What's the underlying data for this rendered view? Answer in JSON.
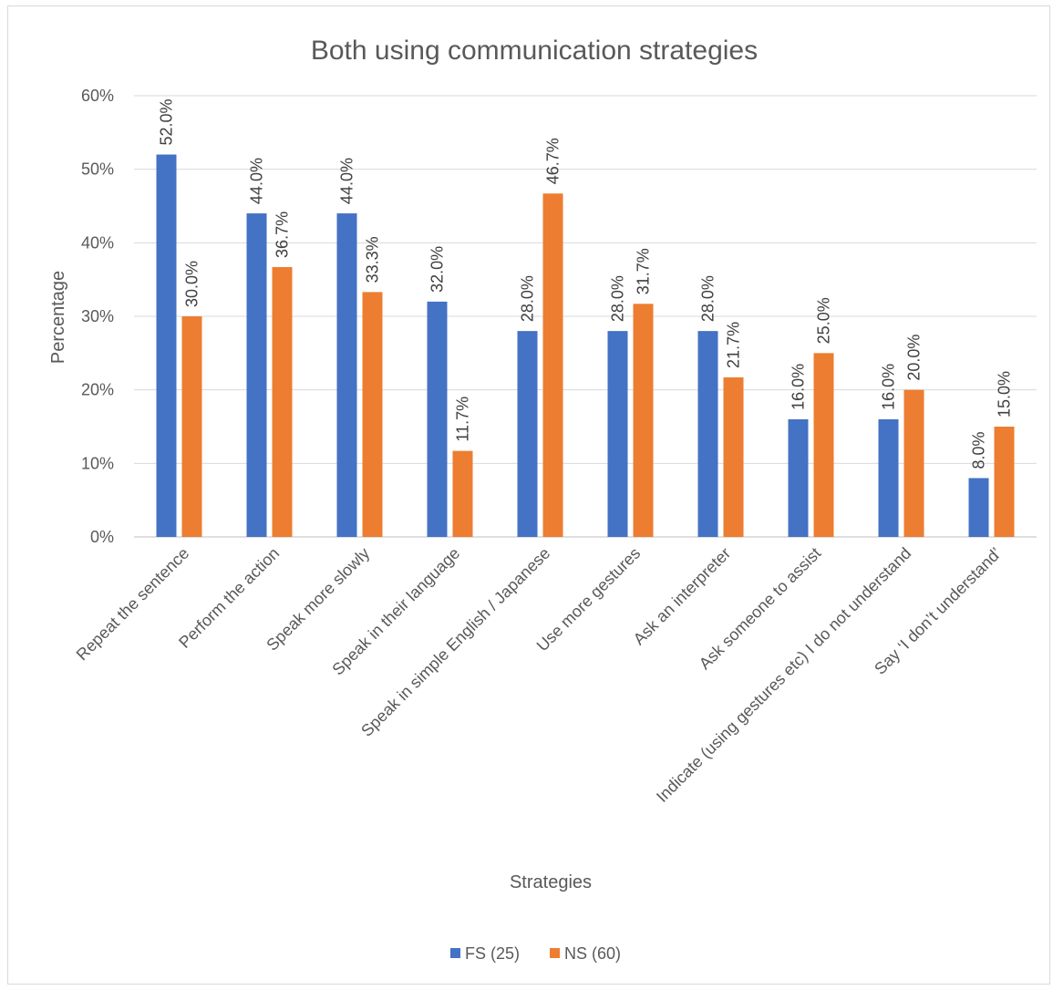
{
  "chart_data": {
    "type": "bar",
    "title": "Both using communication strategies",
    "xlabel": "Strategies",
    "ylabel": "Percentage",
    "ylim": [
      0,
      60
    ],
    "yticks": [
      "0%",
      "10%",
      "20%",
      "30%",
      "40%",
      "50%",
      "60%"
    ],
    "grid": true,
    "legend_position": "bottom",
    "categories": [
      "Repeat the sentence",
      "Perform the action",
      "Speak more slowly",
      "Speak in their language",
      "Speak in simple English / Japanese",
      "Use more gestures",
      "Ask an interpreter",
      "Ask someone to assist",
      "Indicate (using gestures etc) I do not understand",
      "Say ‘I don’t understand’"
    ],
    "series": [
      {
        "name": "FS (25)",
        "color": "#4472c4",
        "values": [
          52.0,
          44.0,
          44.0,
          32.0,
          28.0,
          28.0,
          28.0,
          16.0,
          16.0,
          8.0
        ],
        "labels": [
          "52.0%",
          "44.0%",
          "44.0%",
          "32.0%",
          "28.0%",
          "28.0%",
          "28.0%",
          "16.0%",
          "16.0%",
          "8.0%"
        ]
      },
      {
        "name": "NS (60)",
        "color": "#ed7d31",
        "values": [
          30.0,
          36.7,
          33.3,
          11.7,
          46.7,
          31.7,
          21.7,
          25.0,
          20.0,
          15.0
        ],
        "labels": [
          "30.0%",
          "36.7%",
          "33.3%",
          "11.7%",
          "46.7%",
          "31.7%",
          "21.7%",
          "25.0%",
          "20.0%",
          "15.0%"
        ]
      }
    ]
  }
}
